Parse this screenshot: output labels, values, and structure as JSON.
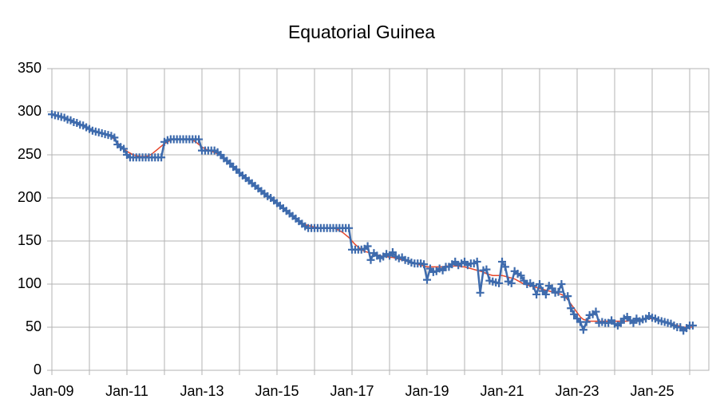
{
  "chart_data": {
    "type": "line",
    "title": "Equatorial Guinea",
    "categories": [
      "Jan-09",
      null,
      null,
      null,
      null,
      null,
      null,
      null,
      null,
      null,
      null,
      null,
      null,
      null,
      null,
      null,
      null,
      null,
      null,
      null,
      null,
      null,
      null,
      null,
      "Jan-11",
      null,
      null,
      null,
      null,
      null,
      null,
      null,
      null,
      null,
      null,
      null,
      null,
      null,
      null,
      null,
      null,
      null,
      null,
      null,
      null,
      null,
      null,
      null,
      "Jan-13",
      null,
      null,
      null,
      null,
      null,
      null,
      null,
      null,
      null,
      null,
      null,
      null,
      null,
      null,
      null,
      null,
      null,
      null,
      null,
      null,
      null,
      null,
      null,
      "Jan-15",
      null,
      null,
      null,
      null,
      null,
      null,
      null,
      null,
      null,
      null,
      null,
      null,
      null,
      null,
      null,
      null,
      null,
      null,
      null,
      null,
      null,
      null,
      null,
      "Jan-17",
      null,
      null,
      null,
      null,
      null,
      null,
      null,
      null,
      null,
      null,
      null,
      null,
      null,
      null,
      null,
      null,
      null,
      null,
      null,
      null,
      null,
      null,
      null,
      "Jan-19",
      null,
      null,
      null,
      null,
      null,
      null,
      null,
      null,
      null,
      null,
      null,
      null,
      null,
      null,
      null,
      null,
      null,
      null,
      null,
      null,
      null,
      null,
      null,
      "Jan-21",
      null,
      null,
      null,
      null,
      null,
      null,
      null,
      null,
      null,
      null,
      null,
      null,
      null,
      null,
      null,
      null,
      null,
      null,
      null,
      null,
      null,
      null,
      null,
      "Jan-23",
      null,
      null,
      null,
      null,
      null,
      null,
      null,
      null,
      null,
      null,
      null,
      null,
      null,
      null,
      null,
      null,
      null,
      null,
      null,
      null,
      null,
      null,
      null,
      "Jan-25",
      null,
      null,
      null,
      null,
      null,
      null,
      null,
      null,
      null,
      null,
      null,
      null,
      null
    ],
    "series": [
      {
        "color": "#3e6bad",
        "markers": true,
        "values": [
          297,
          296,
          295,
          294,
          293,
          291,
          290,
          288,
          287,
          285,
          284,
          282,
          280,
          278,
          277,
          276,
          275,
          274,
          273,
          272,
          270,
          262,
          259,
          257,
          250,
          247,
          247,
          247,
          247,
          247,
          247,
          247,
          247,
          247,
          247,
          247,
          265,
          267,
          268,
          268,
          268,
          268,
          268,
          268,
          268,
          268,
          268,
          268,
          255,
          255,
          255,
          255,
          255,
          253,
          250,
          246,
          243,
          240,
          236,
          233,
          229,
          226,
          223,
          220,
          217,
          214,
          211,
          208,
          205,
          202,
          200,
          197,
          194,
          191,
          188,
          185,
          182,
          179,
          176,
          173,
          170,
          167,
          165,
          165,
          165,
          165,
          165,
          165,
          165,
          165,
          165,
          165,
          165,
          165,
          165,
          165,
          140,
          140,
          140,
          140,
          141,
          144,
          128,
          136,
          133,
          130,
          132,
          135,
          133,
          137,
          132,
          130,
          131,
          128,
          127,
          125,
          124,
          124,
          124,
          123,
          105,
          118,
          114,
          115,
          118,
          116,
          120,
          120,
          123,
          126,
          122,
          124,
          126,
          122,
          124,
          124,
          126,
          90,
          116,
          117,
          104,
          103,
          102,
          101,
          126,
          120,
          103,
          101,
          115,
          112,
          110,
          104,
          100,
          101,
          98,
          88,
          100,
          92,
          88,
          98,
          95,
          90,
          91,
          100,
          85,
          86,
          72,
          65,
          60,
          56,
          47,
          56,
          64,
          65,
          68,
          55,
          56,
          55,
          55,
          58,
          54,
          52,
          55,
          60,
          62,
          58,
          55,
          60,
          57,
          59,
          60,
          63,
          61,
          60,
          58,
          57,
          56,
          55,
          54,
          52,
          50,
          50,
          46,
          49,
          52,
          52
        ]
      },
      {
        "color": "#e8472b",
        "markers": false,
        "values": [
          297,
          296,
          295,
          294,
          293,
          291,
          290,
          288,
          287,
          285,
          284,
          282,
          280,
          278,
          277,
          276,
          275,
          274,
          273,
          271,
          268,
          264,
          260,
          257,
          254,
          252,
          250,
          249,
          248,
          248,
          248,
          249,
          251,
          254,
          257,
          260,
          263,
          265,
          267,
          268,
          268,
          268,
          268,
          268,
          268,
          267,
          265,
          262,
          259,
          257,
          255,
          254,
          253,
          251,
          249,
          246,
          243,
          240,
          236,
          233,
          229,
          226,
          223,
          220,
          217,
          214,
          211,
          208,
          205,
          202,
          200,
          197,
          194,
          191,
          188,
          185,
          182,
          179,
          176,
          173,
          171,
          169,
          168,
          167,
          166,
          166,
          165,
          165,
          165,
          165,
          165,
          164,
          162,
          160,
          157,
          154,
          150,
          146,
          143,
          140,
          138,
          137,
          136,
          135,
          134,
          133,
          132,
          132,
          131,
          131,
          130,
          129,
          128,
          127,
          126,
          125,
          124,
          123,
          122,
          121,
          120,
          120,
          120,
          120,
          120,
          120,
          121,
          121,
          121,
          121,
          121,
          120,
          120,
          119,
          118,
          117,
          116,
          115,
          114,
          112,
          111,
          110,
          110,
          110,
          110,
          109,
          108,
          107,
          106,
          104,
          102,
          100,
          99,
          98,
          97,
          96,
          95,
          94,
          93,
          92,
          91,
          90,
          89,
          88,
          86,
          82,
          77,
          72,
          67,
          62,
          59,
          58,
          57,
          57,
          57,
          57,
          57,
          57,
          57,
          57,
          57,
          57,
          57,
          57,
          57,
          58,
          58,
          58,
          59,
          59,
          60,
          60,
          60,
          59,
          58,
          57,
          56,
          55,
          54,
          53,
          52,
          51,
          50,
          50,
          50,
          50
        ]
      }
    ],
    "ylim": [
      0,
      350
    ],
    "yticks": [
      0,
      50,
      100,
      150,
      200,
      250,
      300,
      350
    ],
    "grid": true
  }
}
